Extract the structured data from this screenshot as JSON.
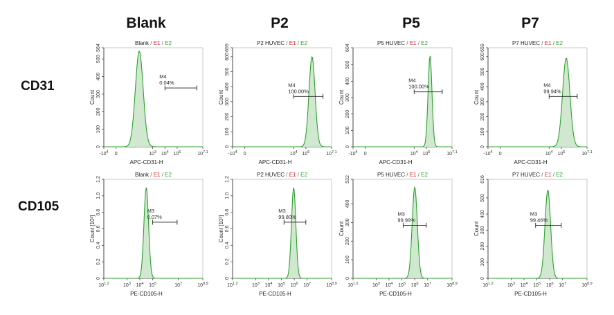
{
  "columns": [
    "Blank",
    "P2",
    "P5",
    "P7"
  ],
  "rows": [
    "CD31",
    "CD105"
  ],
  "colors": {
    "histogram_line": "#2ca02c",
    "histogram_fill": "#cfe8cf",
    "e1": "#d62728",
    "e2": "#2ca02c",
    "axis": "#444444"
  },
  "chart_data": [
    {
      "type": "histogram",
      "row": "CD31",
      "column": "Blank",
      "title": "Blank",
      "title_e1": "E1",
      "title_e2": "E2",
      "xlabel": "APC-CD31-H",
      "ylabel": "Count",
      "ylim": [
        0,
        564
      ],
      "y_ticks": [
        "0",
        "100",
        "200",
        "300",
        "400",
        "500",
        "564"
      ],
      "x_ticks": [
        "-10^4",
        "0",
        "10^3",
        "10^4",
        "10^5",
        "10^7.1"
      ],
      "x_range_log": [
        -1,
        7.1
      ],
      "peak": {
        "center": 1.9,
        "width": 0.32,
        "height": 545
      },
      "gate": {
        "name": "M4",
        "percent": "0.04%",
        "from": 4.0,
        "to": 6.6,
        "y": 335
      }
    },
    {
      "type": "histogram",
      "row": "CD31",
      "column": "P2",
      "title": "P2 HUVEC",
      "title_e1": "E1",
      "title_e2": "E2",
      "xlabel": "APC-CD31-H",
      "ylabel": "Count",
      "ylim": [
        0,
        659
      ],
      "y_ticks": [
        "0",
        "100",
        "200",
        "300",
        "400",
        "500",
        "600",
        "659"
      ],
      "x_ticks": [
        "-10^4",
        "0",
        "10^4",
        "10^5",
        "10^7.1"
      ],
      "x_range_log": [
        -1,
        7.1
      ],
      "peak": {
        "center": 5.5,
        "width": 0.25,
        "height": 600
      },
      "gate": {
        "name": "M4",
        "percent": "100.00%",
        "from": 4.0,
        "to": 6.4,
        "y": 335
      }
    },
    {
      "type": "histogram",
      "row": "CD31",
      "column": "P5",
      "title": "P5 HUVEC",
      "title_e1": "E1",
      "title_e2": "E2",
      "xlabel": "APC-CD31-H",
      "ylabel": "Count",
      "ylim": [
        0,
        604
      ],
      "y_ticks": [
        "0",
        "100",
        "200",
        "300",
        "400",
        "500",
        "604"
      ],
      "x_ticks": [
        "-10^4",
        "0",
        "10^4",
        "10^5",
        "10^7.1"
      ],
      "x_range_log": [
        -1,
        7.1
      ],
      "peak": {
        "center": 5.3,
        "width": 0.16,
        "height": 555
      },
      "gate": {
        "name": "M4",
        "percent": "100.00%",
        "from": 4.0,
        "to": 6.3,
        "y": 335
      }
    },
    {
      "type": "histogram",
      "row": "CD31",
      "column": "P7",
      "title": "P7 HUVEC",
      "title_e1": "E1",
      "title_e2": "E2",
      "xlabel": "APC-CD31-H",
      "ylabel": "Count",
      "ylim": [
        0,
        659
      ],
      "y_ticks": [
        "0",
        "100",
        "200",
        "300",
        "400",
        "500",
        "600",
        "659"
      ],
      "x_ticks": [
        "-10^4",
        "0",
        "10^4",
        "10^5",
        "10^7.1"
      ],
      "x_range_log": [
        -1,
        7.1
      ],
      "peak": {
        "center": 5.4,
        "width": 0.3,
        "height": 590
      },
      "gate": {
        "name": "M4",
        "percent": "99.94%",
        "from": 4.0,
        "to": 6.3,
        "y": 335
      }
    },
    {
      "type": "histogram",
      "row": "CD105",
      "column": "Blank",
      "title": "Blank",
      "title_e1": "E1",
      "title_e2": "E2",
      "xlabel": "PE-CD105-H",
      "ylabel": "Count [10^3]",
      "ylim": [
        0,
        1.2
      ],
      "y_ticks": [
        "0",
        "0.2",
        "0.4",
        "0.6",
        "0.8",
        "1.0",
        "1.2"
      ],
      "x_ticks": [
        "10^1.2",
        "10^3",
        "10^4",
        "10^5",
        "10^7",
        "10^8.9"
      ],
      "x_range_log": [
        1.2,
        8.9
      ],
      "peak": {
        "center": 4.5,
        "width": 0.18,
        "height": 1.1
      },
      "gate": {
        "name": "M3",
        "percent": "0.07%",
        "from": 5.0,
        "to": 6.9,
        "y": 0.68
      }
    },
    {
      "type": "histogram",
      "row": "CD105",
      "column": "P2",
      "title": "P2 HUVEC",
      "title_e1": "E1",
      "title_e2": "E2",
      "xlabel": "PE-CD105-H",
      "ylabel": "Count [10^3]",
      "ylim": [
        0,
        1.2
      ],
      "y_ticks": [
        "0",
        "0.2",
        "0.4",
        "0.6",
        "0.8",
        "1.0",
        "1.2"
      ],
      "x_ticks": [
        "10^1.2",
        "10^3",
        "10^4",
        "10^5",
        "10^6",
        "10^7",
        "10^8.9"
      ],
      "x_range_log": [
        1.2,
        8.9
      ],
      "peak": {
        "center": 5.95,
        "width": 0.17,
        "height": 1.1
      },
      "gate": {
        "name": "M3",
        "percent": "99.80%",
        "from": 5.2,
        "to": 6.9,
        "y": 0.68
      }
    },
    {
      "type": "histogram",
      "row": "CD105",
      "column": "P5",
      "title": "P5 HUVEC",
      "title_e1": "E1",
      "title_e2": "E2",
      "xlabel": "PE-CD105-H",
      "ylabel": "Count",
      "ylim": [
        0,
        532
      ],
      "y_ticks": [
        "0",
        "100",
        "200",
        "300",
        "400",
        "532"
      ],
      "x_ticks": [
        "10^1.2",
        "10^3",
        "10^4",
        "10^5",
        "10^6",
        "10^7",
        "10^8.9"
      ],
      "x_range_log": [
        1.2,
        8.9
      ],
      "peak": {
        "center": 6.0,
        "width": 0.2,
        "height": 490
      },
      "gate": {
        "name": "M3",
        "percent": "99.99%",
        "from": 5.1,
        "to": 6.9,
        "y": 285
      }
    },
    {
      "type": "histogram",
      "row": "CD105",
      "column": "P7",
      "title": "P7 HUVEC",
      "title_e1": "E1",
      "title_e2": "E2",
      "xlabel": "PE-CD105-H",
      "ylabel": "Count",
      "ylim": [
        0,
        616
      ],
      "y_ticks": [
        "0",
        "100",
        "200",
        "300",
        "400",
        "500",
        "616"
      ],
      "x_ticks": [
        "10^1.2",
        "10^3",
        "10^4",
        "10^5",
        "10^6",
        "10^7",
        "10^8.9"
      ],
      "x_range_log": [
        1.2,
        8.9
      ],
      "peak": {
        "center": 5.85,
        "width": 0.22,
        "height": 550
      },
      "gate": {
        "name": "M3",
        "percent": "99.46%",
        "from": 4.9,
        "to": 6.9,
        "y": 330
      }
    }
  ]
}
